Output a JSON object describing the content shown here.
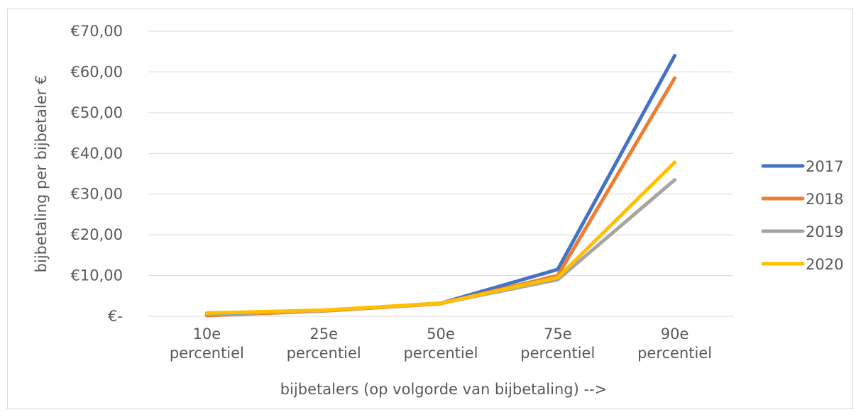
{
  "chart_data": {
    "type": "line",
    "title": "",
    "xlabel": "bijbetalers (op volgorde van bijbetaling) -->",
    "ylabel": "bijbetaling per bijbetaler €",
    "categories": [
      [
        "10e",
        "percentiel"
      ],
      [
        "25e",
        "percentiel"
      ],
      [
        "50e",
        "percentiel"
      ],
      [
        "75e",
        "percentiel"
      ],
      [
        "90e",
        "percentiel"
      ]
    ],
    "ylim": [
      0,
      70
    ],
    "yticks": [
      0,
      10,
      20,
      30,
      40,
      50,
      60,
      70
    ],
    "ytick_labels": [
      "€-",
      "€10,00",
      "€20,00",
      "€30,00",
      "€40,00",
      "€50,00",
      "€60,00",
      "€70,00"
    ],
    "grid": true,
    "legend_position": "right",
    "series": [
      {
        "name": "2017",
        "color": "#4472C4",
        "values": [
          0.2,
          1.4,
          3.2,
          11.5,
          64.0
        ]
      },
      {
        "name": "2018",
        "color": "#ED7D31",
        "values": [
          0.2,
          1.3,
          3.1,
          10.0,
          58.5
        ]
      },
      {
        "name": "2019",
        "color": "#A5A5A5",
        "values": [
          0.5,
          1.4,
          3.2,
          9.0,
          33.5
        ]
      },
      {
        "name": "2020",
        "color": "#FFC000",
        "values": [
          0.8,
          1.5,
          3.2,
          9.5,
          37.8
        ]
      }
    ]
  }
}
